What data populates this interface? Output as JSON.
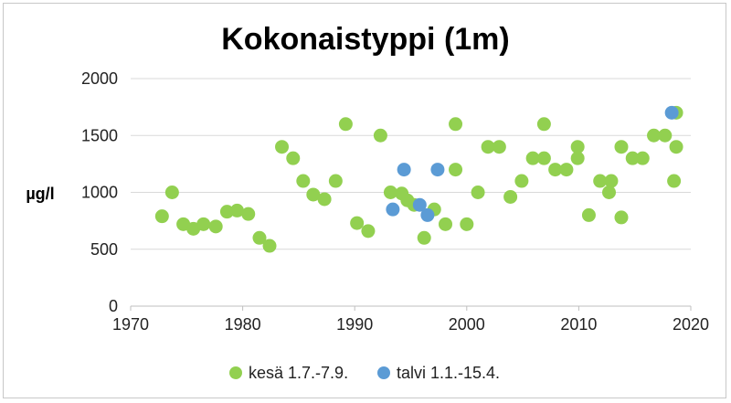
{
  "chart_data": {
    "type": "scatter",
    "title": "Kokonaistyppi (1m)",
    "ylabel": "µg/l",
    "xlabel": "",
    "xlim": [
      1970,
      2020
    ],
    "ylim": [
      0,
      2000
    ],
    "xticks": [
      1970,
      1980,
      1990,
      2000,
      2010,
      2020
    ],
    "yticks": [
      0,
      500,
      1000,
      1500,
      2000
    ],
    "grid": "horizontal",
    "legend_position": "bottom",
    "series": [
      {
        "name": "kesä 1.7.-7.9.",
        "color": "#92d050",
        "points": [
          [
            1972.8,
            790
          ],
          [
            1973.7,
            1000
          ],
          [
            1974.7,
            720
          ],
          [
            1975.6,
            680
          ],
          [
            1976.5,
            720
          ],
          [
            1977.6,
            700
          ],
          [
            1978.6,
            830
          ],
          [
            1979.5,
            840
          ],
          [
            1980.5,
            810
          ],
          [
            1981.5,
            600
          ],
          [
            1982.4,
            530
          ],
          [
            1983.5,
            1400
          ],
          [
            1984.5,
            1300
          ],
          [
            1985.4,
            1100
          ],
          [
            1986.3,
            980
          ],
          [
            1987.3,
            940
          ],
          [
            1988.3,
            1100
          ],
          [
            1989.2,
            1600
          ],
          [
            1990.2,
            730
          ],
          [
            1991.2,
            660
          ],
          [
            1992.3,
            1500
          ],
          [
            1993.2,
            1000
          ],
          [
            1994.2,
            990
          ],
          [
            1994.7,
            930
          ],
          [
            1995.3,
            890
          ],
          [
            1996.2,
            600
          ],
          [
            1997.1,
            850
          ],
          [
            1998.1,
            720
          ],
          [
            1999.0,
            1600
          ],
          [
            1999.0,
            1200
          ],
          [
            2000.0,
            720
          ],
          [
            2001.0,
            1000
          ],
          [
            2001.9,
            1400
          ],
          [
            2002.9,
            1400
          ],
          [
            2003.9,
            960
          ],
          [
            2004.9,
            1100
          ],
          [
            2005.9,
            1300
          ],
          [
            2006.9,
            1600
          ],
          [
            2006.9,
            1300
          ],
          [
            2007.9,
            1200
          ],
          [
            2008.9,
            1200
          ],
          [
            2009.9,
            1400
          ],
          [
            2009.9,
            1300
          ],
          [
            2010.9,
            800
          ],
          [
            2011.9,
            1100
          ],
          [
            2012.7,
            1000
          ],
          [
            2012.9,
            1100
          ],
          [
            2013.8,
            780
          ],
          [
            2013.8,
            1400
          ],
          [
            2014.8,
            1300
          ],
          [
            2015.7,
            1300
          ],
          [
            2016.7,
            1500
          ],
          [
            2017.7,
            1500
          ],
          [
            2018.7,
            1700
          ],
          [
            2018.7,
            1400
          ],
          [
            2018.5,
            1100
          ]
        ]
      },
      {
        "name": "talvi 1.1.-15.4.",
        "color": "#5b9bd5",
        "points": [
          [
            1993.4,
            850
          ],
          [
            1994.4,
            1200
          ],
          [
            1995.8,
            890
          ],
          [
            1996.5,
            800
          ],
          [
            1997.4,
            1200
          ],
          [
            2018.3,
            1700
          ]
        ]
      }
    ]
  }
}
